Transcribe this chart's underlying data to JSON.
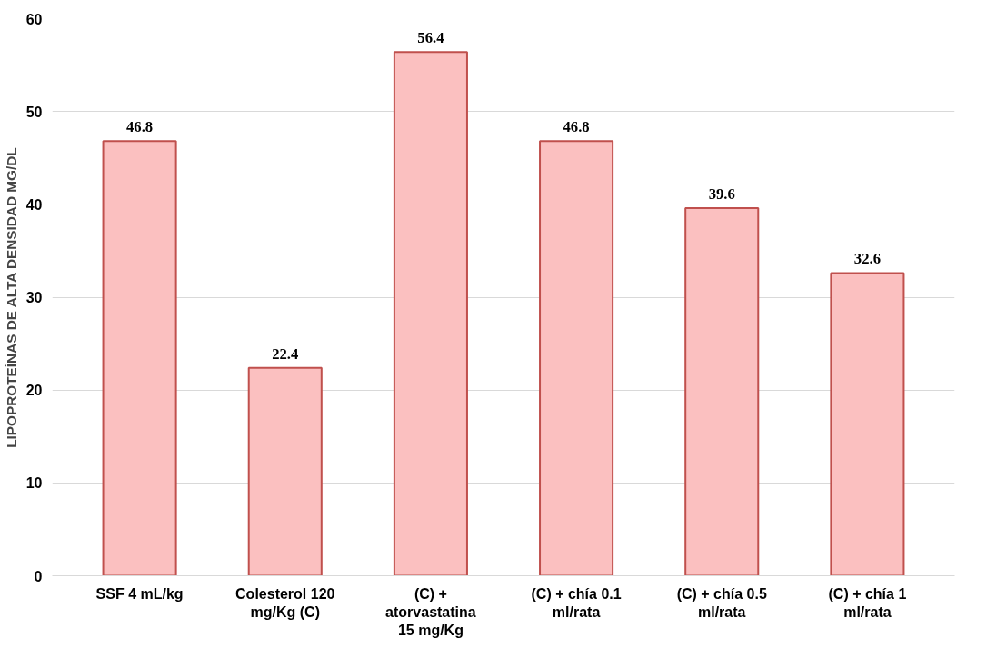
{
  "chart_data": {
    "type": "bar",
    "ylabel": "LIPOPROTEÍNAS DE ALTA DENSIDAD MG/DL",
    "categories": [
      "SSF 4 mL/kg",
      "Colesterol 120 mg/Kg (C)",
      "(C) + atorvastatina 15 mg/Kg",
      "(C) + chía 0.1 ml/rata",
      "(C) + chía 0.5 ml/rata",
      "(C) + chía 1 ml/rata"
    ],
    "values": [
      46.8,
      22.4,
      56.4,
      46.8,
      39.6,
      32.6
    ],
    "color": "#fbc0c0",
    "ylim": [
      0,
      60
    ],
    "yticks": [
      0,
      10,
      20,
      30,
      40,
      50,
      60
    ],
    "grid": "y",
    "data_labels": true
  }
}
